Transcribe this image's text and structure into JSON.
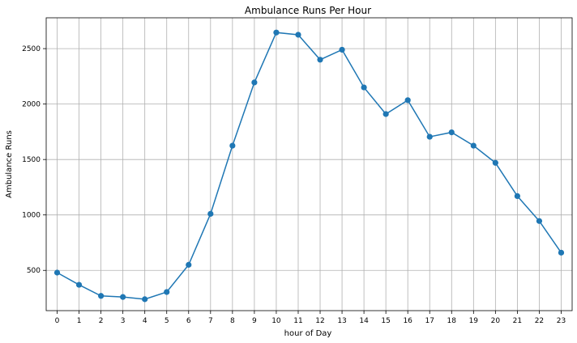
{
  "chart_data": {
    "type": "line",
    "title": "Ambulance Runs Per Hour",
    "xlabel": "hour of Day",
    "ylabel": "Ambulance Runs",
    "x": [
      0,
      1,
      2,
      3,
      4,
      5,
      6,
      7,
      8,
      9,
      10,
      11,
      12,
      13,
      14,
      15,
      16,
      17,
      18,
      19,
      20,
      21,
      22,
      23
    ],
    "x_tick_labels": [
      "0",
      "1",
      "2",
      "3",
      "4",
      "5",
      "6",
      "7",
      "8",
      "9",
      "10",
      "11",
      "12",
      "13",
      "14",
      "15",
      "16",
      "17",
      "18",
      "19",
      "20",
      "21",
      "22",
      "23"
    ],
    "series": [
      {
        "values": [
          480,
          370,
          270,
          260,
          240,
          305,
          550,
          1010,
          1625,
          2195,
          2645,
          2625,
          2400,
          2490,
          2150,
          1910,
          2035,
          1705,
          1745,
          1625,
          1470,
          1170,
          945,
          660
        ]
      }
    ],
    "xlim": [
      -0.5,
      23.5
    ],
    "ylim": [
      137,
      2778
    ],
    "y_ticks": [
      500,
      1000,
      1500,
      2000,
      2500
    ],
    "y_tick_labels": [
      "500",
      "1000",
      "1500",
      "2000",
      "2500"
    ],
    "grid": true,
    "markers": true,
    "line_color": "#1f77b4"
  }
}
